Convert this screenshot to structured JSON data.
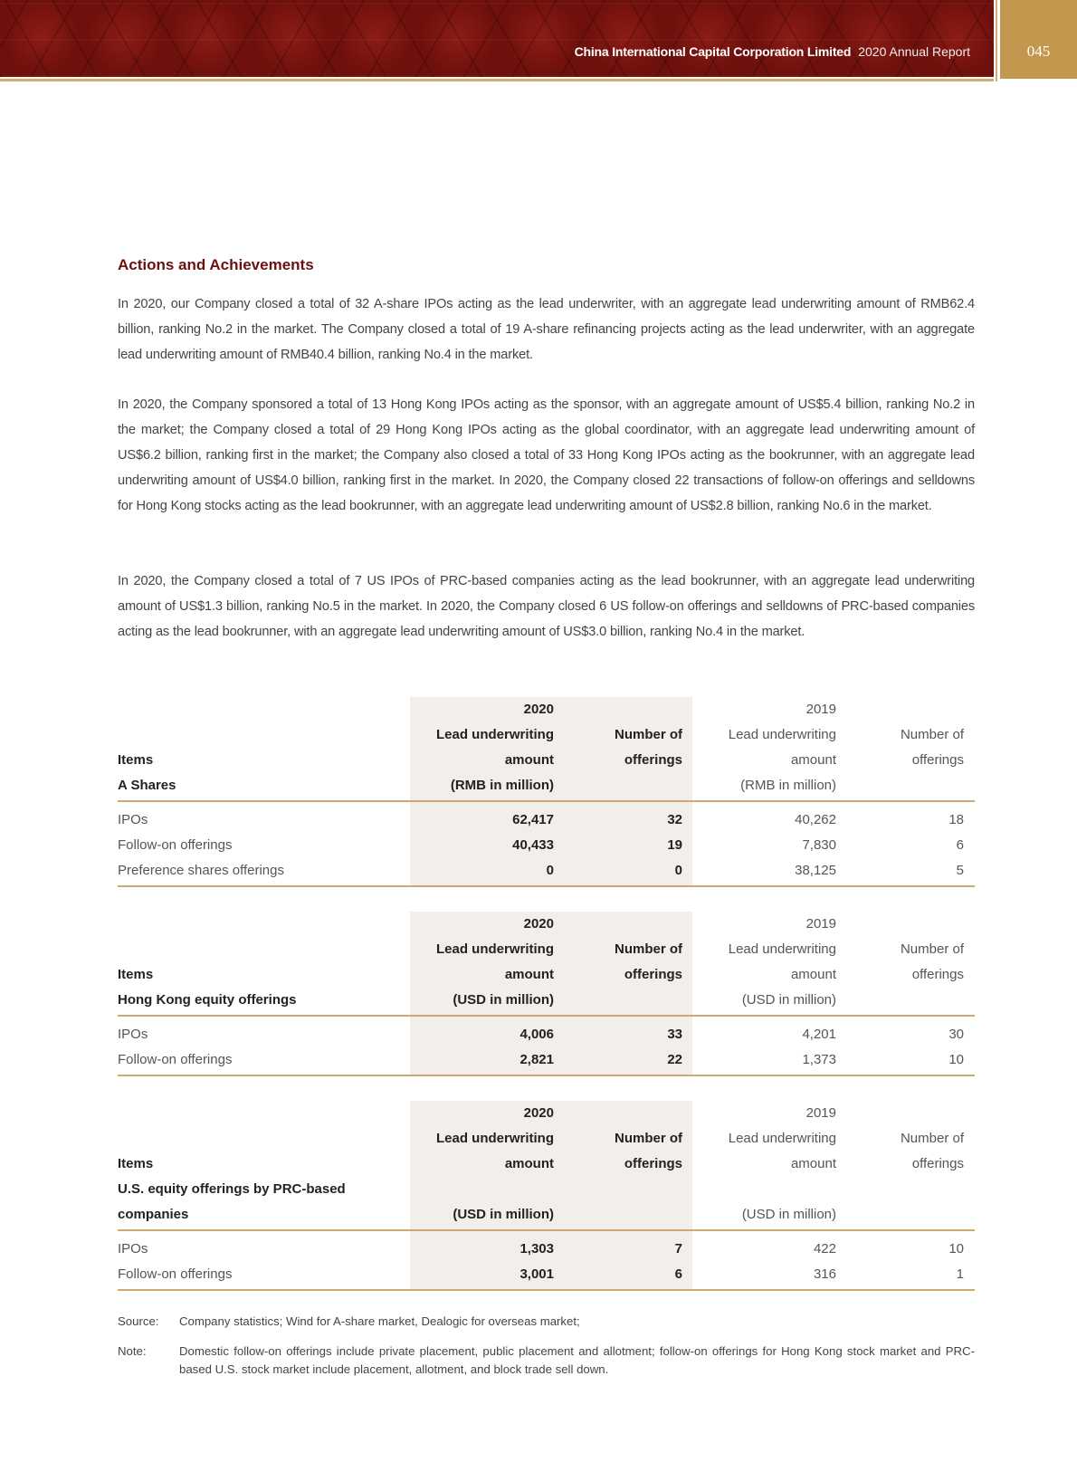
{
  "header": {
    "company": "China International Capital Corporation Limited",
    "report": "2020 Annual Report",
    "page_number": "045",
    "colors": {
      "banner": "#7a1410",
      "gold": "#c4974e",
      "heading": "#6b1111"
    }
  },
  "section": {
    "title": "Actions and Achievements",
    "paragraphs": [
      "In 2020, our Company closed a total of 32 A-share IPOs acting as the lead underwriter, with an aggregate lead underwriting amount of RMB62.4 billion, ranking No.2 in the market. The Company closed a total of 19 A-share refinancing projects acting as the lead underwriter, with an aggregate lead underwriting amount of RMB40.4 billion, ranking No.4 in the market.",
      "In 2020, the Company sponsored a total of 13 Hong Kong IPOs acting as the sponsor, with an aggregate amount of US$5.4 billion, ranking No.2 in the market; the Company closed a total of 29 Hong Kong IPOs acting as the global coordinator, with an aggregate lead underwriting amount of US$6.2 billion, ranking first in the market; the Company also closed a total of 33 Hong Kong IPOs acting as the bookrunner, with an aggregate lead underwriting amount of US$4.0 billion, ranking first in the market. In 2020, the Company closed 22 transactions of follow-on offerings and selldowns for Hong Kong stocks acting as the lead bookrunner, with an aggregate lead underwriting amount of US$2.8 billion, ranking No.6 in the market.",
      "In 2020, the Company closed a total of 7 US IPOs of PRC-based companies acting as the lead bookrunner, with an aggregate lead underwriting amount of US$1.3 billion, ranking No.5 in the market. In 2020, the Company closed 6 US follow-on offerings and selldowns of PRC-based companies acting as the lead bookrunner, with an aggregate lead underwriting amount of US$3.0 billion, ranking No.4 in the market."
    ]
  },
  "tables": [
    {
      "header_rows": [
        [
          "",
          "2020",
          "",
          "2019",
          ""
        ],
        [
          "",
          "Lead underwriting",
          "Number of",
          "Lead underwriting",
          "Number of"
        ],
        [
          "Items",
          "amount",
          "offerings",
          "amount",
          "offerings"
        ],
        [
          "A Shares",
          "(RMB in million)",
          "",
          "(RMB in million)",
          ""
        ]
      ],
      "rows": [
        [
          "IPOs",
          "62,417",
          "32",
          "40,262",
          "18"
        ],
        [
          "Follow-on offerings",
          "40,433",
          "19",
          "7,830",
          "6"
        ],
        [
          "Preference shares offerings",
          "0",
          "0",
          "38,125",
          "5"
        ]
      ]
    },
    {
      "header_rows": [
        [
          "",
          "2020",
          "",
          "2019",
          ""
        ],
        [
          "",
          "Lead underwriting",
          "Number of",
          "Lead underwriting",
          "Number of"
        ],
        [
          "Items",
          "amount",
          "offerings",
          "amount",
          "offerings"
        ],
        [
          "Hong Kong equity offerings",
          "(USD in million)",
          "",
          "(USD in million)",
          ""
        ]
      ],
      "rows": [
        [
          "IPOs",
          "4,006",
          "33",
          "4,201",
          "30"
        ],
        [
          "Follow-on offerings",
          "2,821",
          "22",
          "1,373",
          "10"
        ]
      ]
    },
    {
      "header_rows": [
        [
          "",
          "2020",
          "",
          "2019",
          ""
        ],
        [
          "",
          "Lead underwriting",
          "Number of",
          "Lead underwriting",
          "Number of"
        ],
        [
          "Items",
          "amount",
          "offerings",
          "amount",
          "offerings"
        ],
        [
          "U.S. equity offerings by PRC-based",
          "",
          "",
          "",
          ""
        ],
        [
          "companies",
          "(USD in million)",
          "",
          "(USD in million)",
          ""
        ]
      ],
      "rows": [
        [
          "IPOs",
          "1,303",
          "7",
          "422",
          "10"
        ],
        [
          "Follow-on offerings",
          "3,001",
          "6",
          "316",
          "1"
        ]
      ]
    }
  ],
  "footnotes": {
    "source_label": "Source:",
    "source_text": "Company statistics; Wind for A-share market, Dealogic for overseas market;",
    "note_label": "Note:",
    "note_text": "Domestic follow-on offerings include private placement, public placement and allotment; follow-on offerings for Hong Kong stock market and PRC-based U.S. stock market include placement, allotment, and block trade sell down."
  }
}
